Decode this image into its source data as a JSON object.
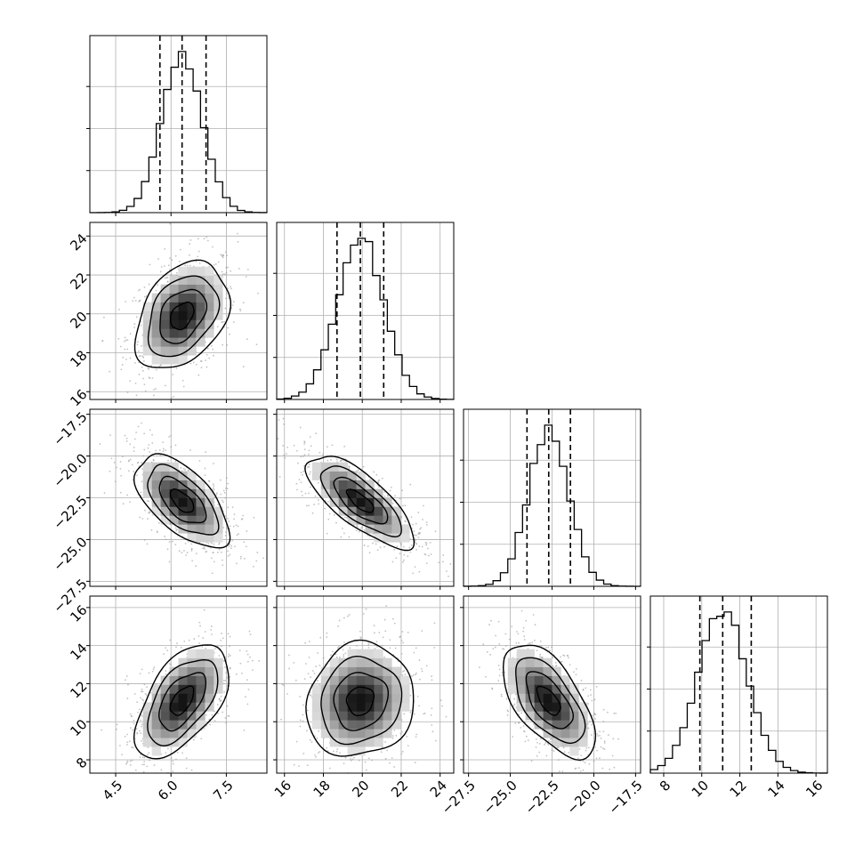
{
  "chart_data": {
    "type": "corner",
    "grid": true,
    "quantile_lines": "dashed",
    "parameters": [
      {
        "mean": 6.3,
        "sd": 0.55,
        "range": [
          3.8,
          8.6
        ],
        "quantiles": [
          5.7,
          6.3,
          6.95
        ],
        "ticks": [
          4.5,
          6.0,
          7.5
        ],
        "tick_labels": [
          "4.5",
          "6.0",
          "7.5"
        ]
      },
      {
        "mean": 19.9,
        "sd": 1.2,
        "range": [
          15.6,
          24.7
        ],
        "quantiles": [
          18.7,
          19.9,
          21.1
        ],
        "ticks": [
          16,
          18,
          20,
          22,
          24
        ],
        "tick_labels": [
          "16",
          "18",
          "20",
          "22",
          "24"
        ]
      },
      {
        "mean": -22.7,
        "sd": 1.2,
        "range": [
          -27.8,
          -17.2
        ],
        "quantiles": [
          -24.0,
          -22.7,
          -21.4
        ],
        "ticks": [
          -27.5,
          -25.0,
          -22.5,
          -20.0,
          -17.5
        ],
        "tick_labels": [
          "−27.5",
          "−25.0",
          "−22.5",
          "−20.0",
          "−17.5"
        ]
      },
      {
        "mean": 11.1,
        "sd": 1.3,
        "range": [
          7.3,
          16.6
        ],
        "quantiles": [
          9.9,
          11.1,
          12.6
        ],
        "ticks": [
          8,
          10,
          12,
          14,
          16
        ],
        "tick_labels": [
          "8",
          "10",
          "12",
          "14",
          "16"
        ]
      }
    ],
    "correlations": [
      [
        1.0,
        0.35,
        -0.6,
        0.55
      ],
      [
        0.35,
        1.0,
        -0.75,
        0.1
      ],
      [
        -0.6,
        -0.75,
        1.0,
        -0.6
      ],
      [
        0.55,
        0.1,
        -0.6,
        1.0
      ]
    ],
    "contour_levels_sigma": [
      0.5,
      1.0,
      1.5,
      2.0
    ]
  }
}
